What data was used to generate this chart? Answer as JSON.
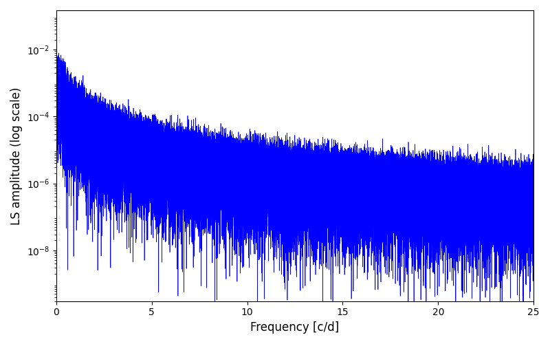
{
  "xlabel": "Frequency [c/d]",
  "ylabel": "LS amplitude (log scale)",
  "xlim": [
    0,
    25
  ],
  "ylim": [
    3e-10,
    0.15
  ],
  "xticks": [
    0,
    5,
    10,
    15,
    20,
    25
  ],
  "line_color": "#0000ff",
  "line_width": 0.5,
  "figsize": [
    8.0,
    5.0
  ],
  "dpi": 100,
  "bg_color": "#ffffff",
  "freq_max": 25.0,
  "n_points": 100000,
  "seed": 42,
  "yticks": [
    1e-08,
    1e-06,
    0.0001,
    0.01
  ]
}
